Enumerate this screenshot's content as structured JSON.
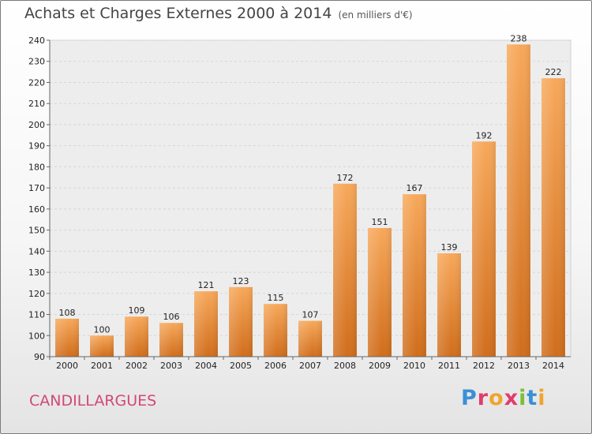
{
  "page": {
    "title": "Achats et Charges Externes 2000 à 2014",
    "subtitle": "(en milliers d'€)",
    "city": "CANDILLARGUES",
    "logo": {
      "text": "Proxiti",
      "letters": [
        {
          "char": "P",
          "color": "#3b8fd6"
        },
        {
          "char": "r",
          "color": "#e03b6f"
        },
        {
          "char": "o",
          "color": "#f0a430"
        },
        {
          "char": "x",
          "color": "#e03b6f"
        },
        {
          "char": "i",
          "color": "#7bbf3a"
        },
        {
          "char": "t",
          "color": "#3b8fd6"
        },
        {
          "char": "i",
          "color": "#f0a430"
        }
      ]
    }
  },
  "chart_data": {
    "type": "bar",
    "title": "Achats et Charges Externes 2000 à 2014",
    "subtitle": "(en milliers d'€)",
    "categories": [
      "2000",
      "2001",
      "2002",
      "2003",
      "2004",
      "2005",
      "2006",
      "2007",
      "2008",
      "2009",
      "2010",
      "2011",
      "2012",
      "2013",
      "2014"
    ],
    "values": [
      108,
      100,
      109,
      106,
      121,
      123,
      115,
      107,
      172,
      151,
      167,
      139,
      192,
      238,
      222
    ],
    "ylim": [
      90,
      240
    ],
    "yticks": [
      90,
      100,
      110,
      120,
      130,
      140,
      150,
      160,
      170,
      180,
      190,
      200,
      210,
      220,
      230,
      240
    ],
    "grid": true,
    "bar_color_top": "#f7a85a",
    "bar_color_bottom": "#d06d1b"
  }
}
